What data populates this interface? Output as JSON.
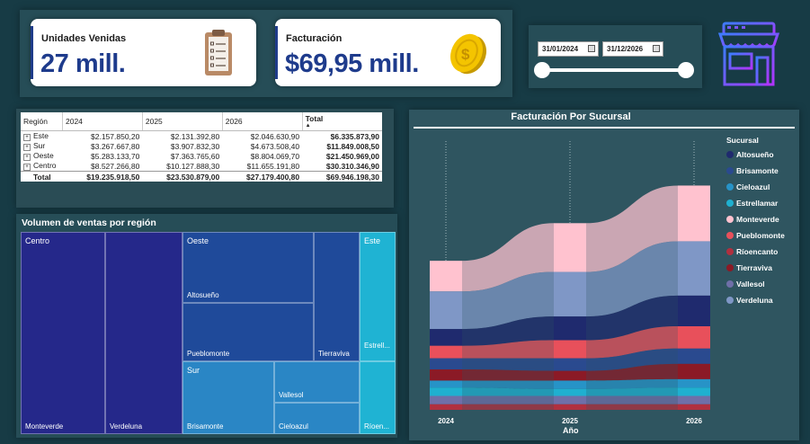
{
  "kpi_units": {
    "title": "Unidades Venidas",
    "value": "27 mill."
  },
  "kpi_billing": {
    "title": "Facturación",
    "value": "$69,95 mill."
  },
  "date_slicer": {
    "start": "31/01/2024",
    "end": "31/12/2026"
  },
  "matrix": {
    "headers": [
      "Región",
      "2024",
      "2025",
      "2026",
      "Total"
    ],
    "rows": [
      {
        "region": "Este",
        "v2024": "$2.157.850,20",
        "v2025": "$2.131.392,80",
        "v2026": "$2.046.630,90",
        "total": "$6.335.873,90"
      },
      {
        "region": "Sur",
        "v2024": "$3.267.667,80",
        "v2025": "$3.907.832,30",
        "v2026": "$4.673.508,40",
        "total": "$11.849.008,50"
      },
      {
        "region": "Oeste",
        "v2024": "$5.283.133,70",
        "v2025": "$7.363.765,60",
        "v2026": "$8.804.069,70",
        "total": "$21.450.969,00"
      },
      {
        "region": "Centro",
        "v2024": "$8.527.266,80",
        "v2025": "$10.127.888,30",
        "v2026": "$11.655.191,80",
        "total": "$30.310.346,90"
      }
    ],
    "total_row": {
      "label": "Total",
      "v2024": "$19.235.918,50",
      "v2025": "$23.530.879,00",
      "v2026": "$27.179.400,80",
      "total": "$69.946.198,30"
    }
  },
  "treemap": {
    "title": "Volumen de ventas por región",
    "groups": {
      "centro": "Centro",
      "oeste": "Oeste",
      "este": "Este",
      "sur": "Sur"
    },
    "cells": {
      "monteverde": "Monteverde",
      "verdeluna": "Verdeluna",
      "altosueno": "Altosueño",
      "pueblomonte": "Pueblomonte",
      "tierraviva": "Tierraviva",
      "estrellamar": "Estrell...",
      "brisamonte": "Brisamonte",
      "vallesol": "Vallesol",
      "cieloazul": "Cieloazul",
      "rioencanto": "Ríoen..."
    }
  },
  "ribbon": {
    "title": "Facturación Por Sucursal",
    "legend_title": "Sucursal",
    "xlabel": "Año"
  },
  "colors": {
    "Altosueño": "#1f2a6e",
    "Brisamonte": "#2a4a8f",
    "Cieloazul": "#2793c7",
    "Estrellamar": "#1fb0d0",
    "Monteverde": "#ffc2cf",
    "Pueblomonte": "#e8505b",
    "Ríoencanto": "#b0303f",
    "Tierraviva": "#8b1a26",
    "Vallesol": "#6f6fa8",
    "Verdeluna": "#7f97c6"
  },
  "chart_data": {
    "type": "ribbon",
    "title": "Facturación Por Sucursal",
    "xlabel": "Año",
    "categories": [
      "2024",
      "2025",
      "2026"
    ],
    "series": [
      {
        "name": "Monteverde",
        "values": [
          2.2,
          3.5,
          4.0
        ]
      },
      {
        "name": "Verdeluna",
        "values": [
          2.7,
          3.2,
          3.9
        ]
      },
      {
        "name": "Altosueño",
        "values": [
          1.2,
          1.7,
          2.2
        ]
      },
      {
        "name": "Pueblomonte",
        "values": [
          0.9,
          1.3,
          1.6
        ]
      },
      {
        "name": "Brisamonte",
        "values": [
          0.8,
          0.9,
          1.1
        ]
      },
      {
        "name": "Tierraviva",
        "values": [
          0.8,
          0.7,
          1.1
        ]
      },
      {
        "name": "Cieloazul",
        "values": [
          0.5,
          0.6,
          0.6
        ]
      },
      {
        "name": "Estrellamar",
        "values": [
          0.6,
          0.5,
          0.6
        ]
      },
      {
        "name": "Vallesol",
        "values": [
          0.6,
          0.6,
          0.6
        ]
      },
      {
        "name": "Ríoencanto",
        "values": [
          0.4,
          0.4,
          0.4
        ]
      }
    ]
  }
}
